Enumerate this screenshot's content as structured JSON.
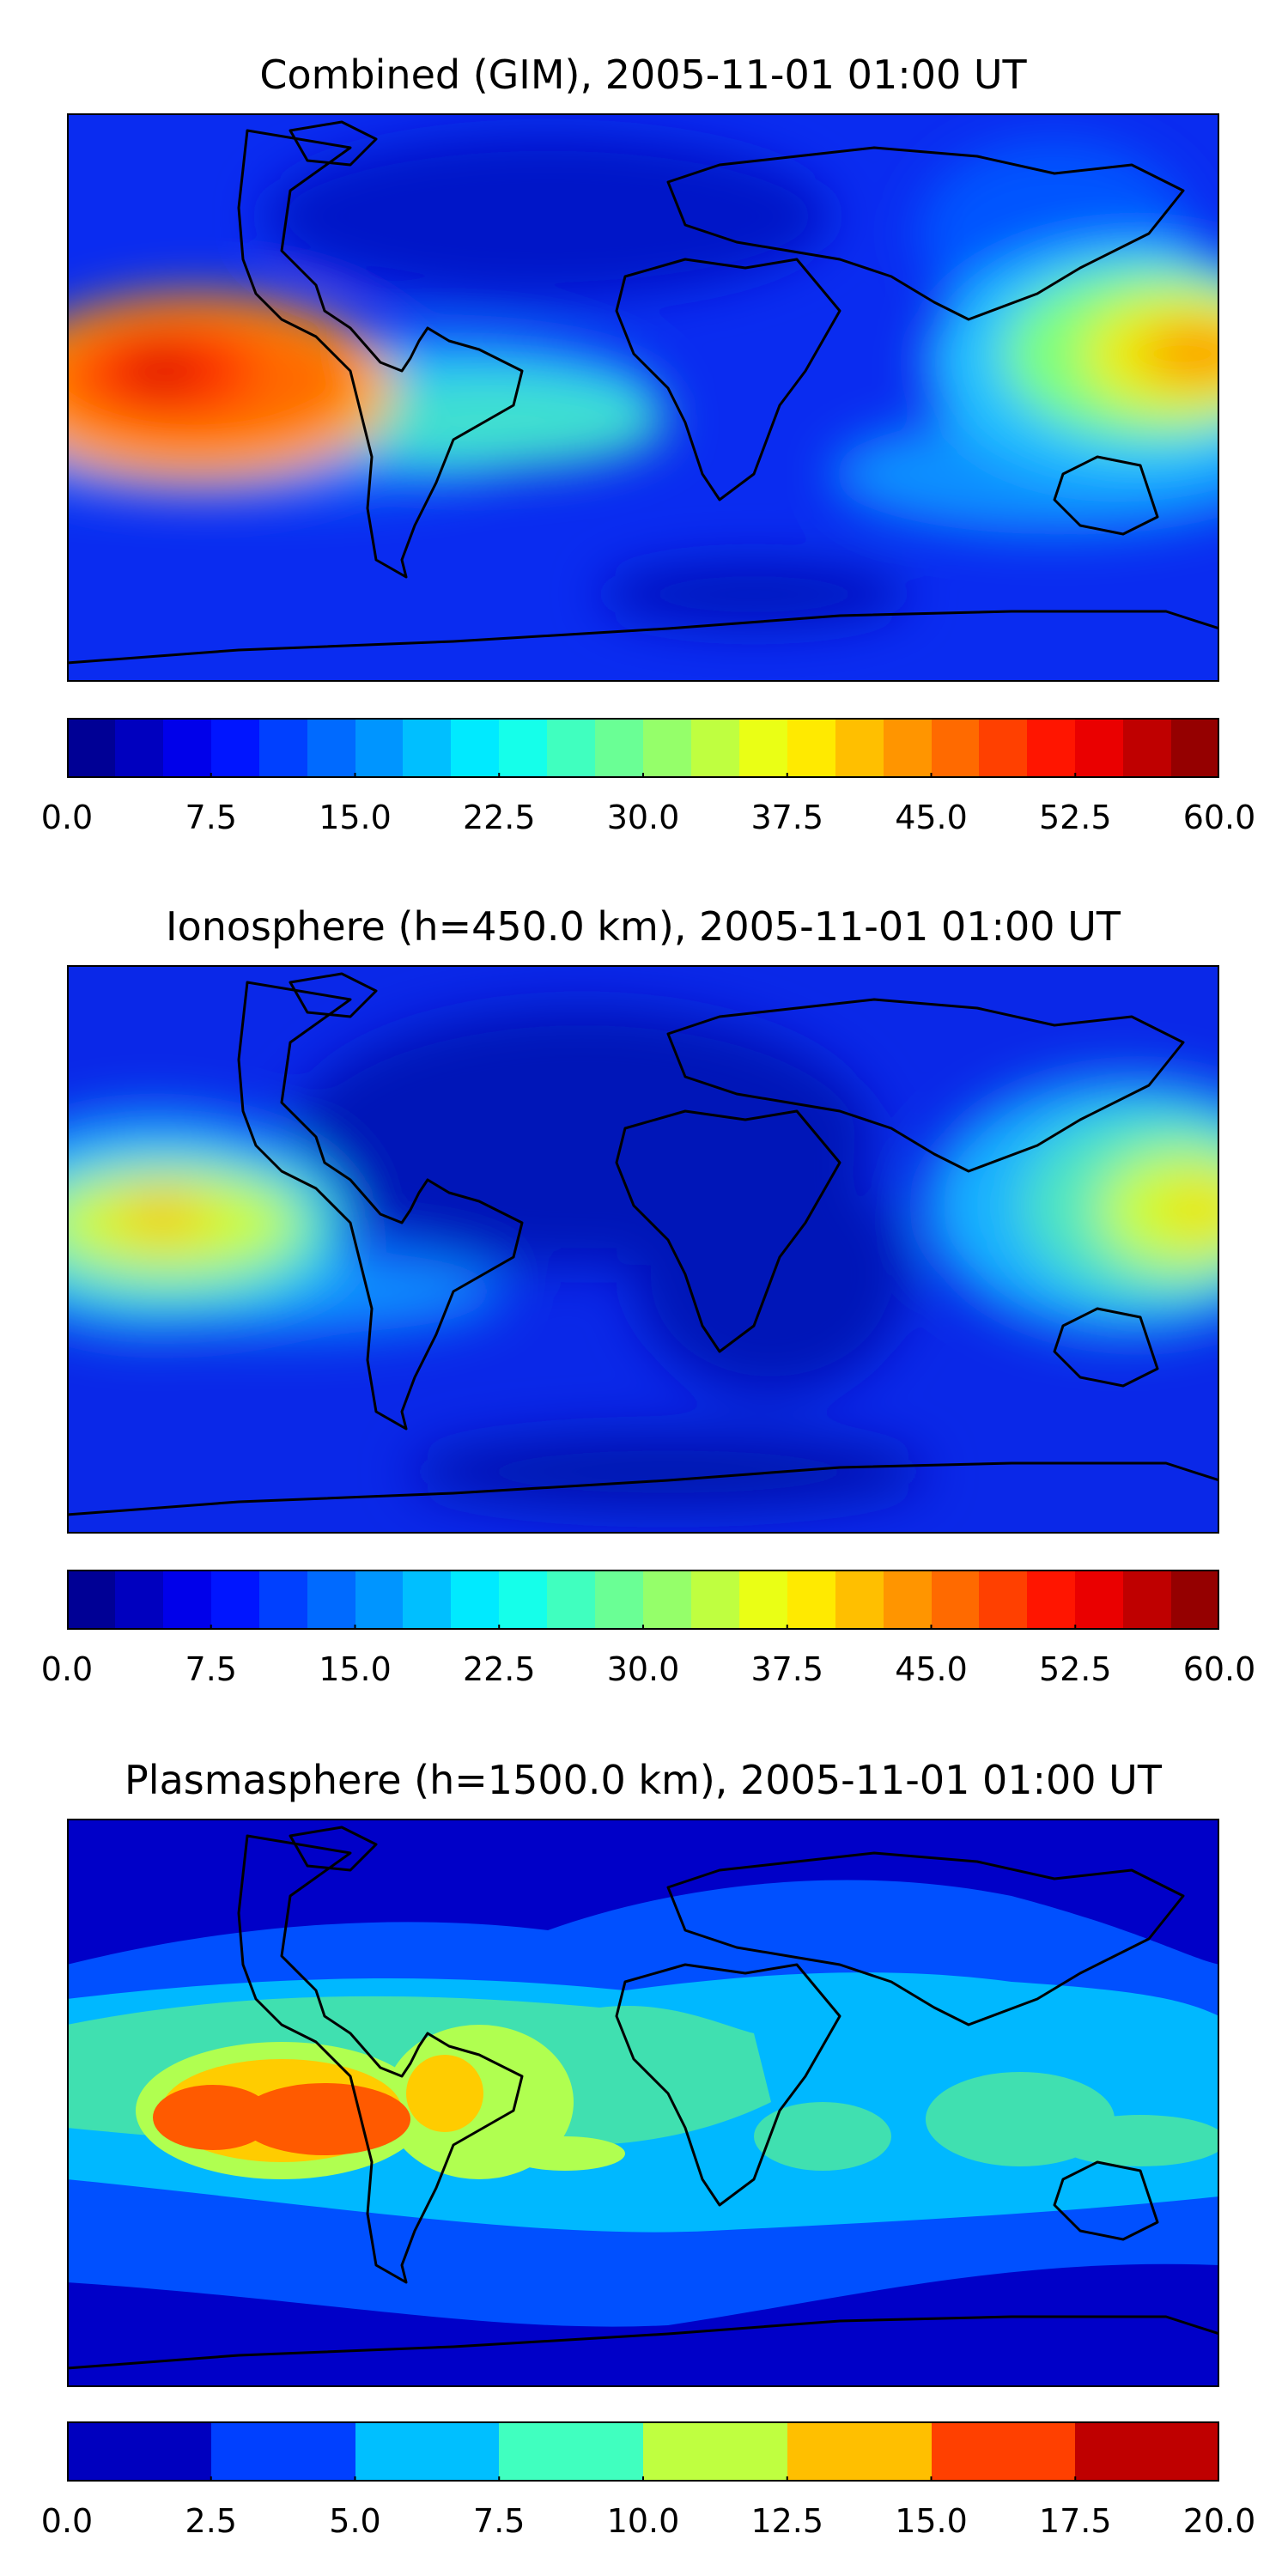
{
  "panels": [
    {
      "title": "Combined (GIM), 2005-11-01 01:00 UT",
      "colorbar": {
        "vmin": 0,
        "vmax": 60,
        "levels": 24,
        "ticks": [
          "0.0",
          "7.5",
          "15.0",
          "22.5",
          "30.0",
          "37.5",
          "45.0",
          "52.5",
          "60.0"
        ]
      }
    },
    {
      "title": "Ionosphere  (h=450.0 km), 2005-11-01 01:00 UT",
      "colorbar": {
        "vmin": 0,
        "vmax": 60,
        "levels": 24,
        "ticks": [
          "0.0",
          "7.5",
          "15.0",
          "22.5",
          "30.0",
          "37.5",
          "45.0",
          "52.5",
          "60.0"
        ]
      }
    },
    {
      "title": "Plasmasphere (h=1500.0 km), 2005-11-01 01:00 UT",
      "colorbar": {
        "vmin": 0,
        "vmax": 20,
        "levels": 8,
        "ticks": [
          "0.0",
          "2.5",
          "5.0",
          "7.5",
          "10.0",
          "12.5",
          "15.0",
          "17.5",
          "20.0"
        ]
      }
    }
  ],
  "colormap": "jet"
}
